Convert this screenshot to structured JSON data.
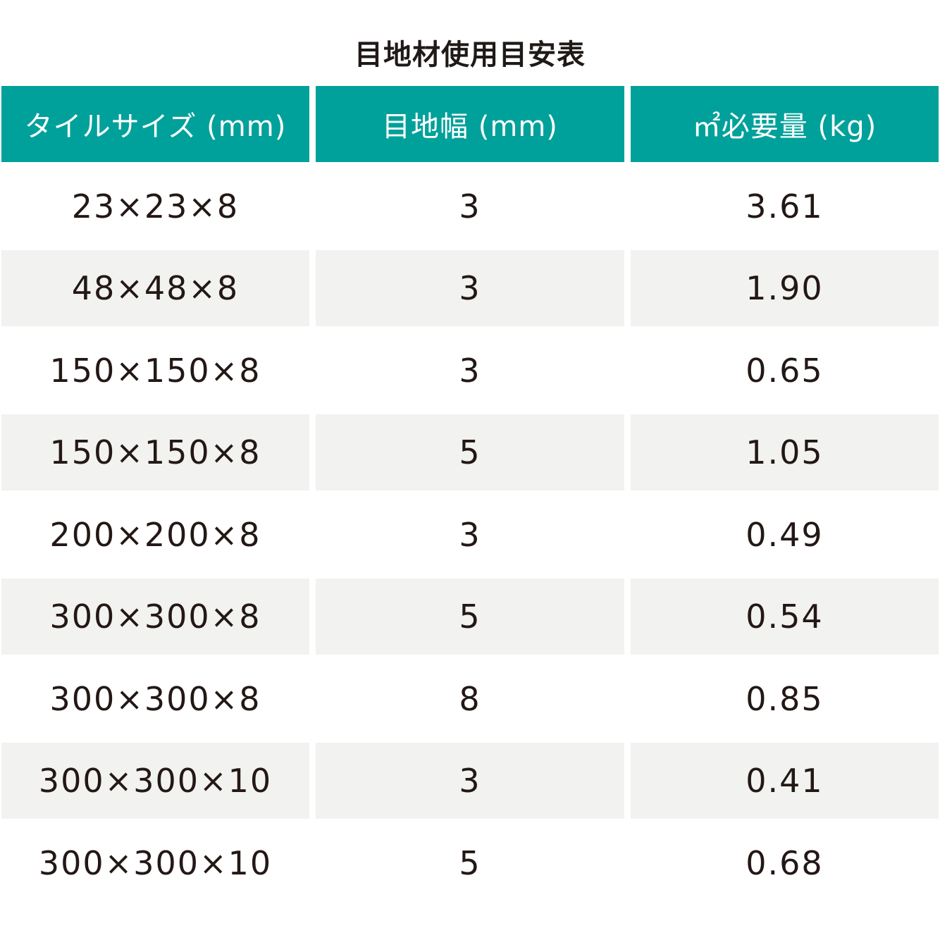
{
  "title": "目地材使用目安表",
  "colors": {
    "header_bg": "#00a19a",
    "header_text": "#ffffff",
    "stripe_bg": "#f2f2f0",
    "text": "#231815"
  },
  "columns": [
    "タイルサイズ (mm)",
    "目地幅 (mm)",
    "㎡必要量 (kg)"
  ],
  "rows": [
    {
      "tile_size": "23×23×8",
      "joint_width": "3",
      "required": "3.61"
    },
    {
      "tile_size": "48×48×8",
      "joint_width": "3",
      "required": "1.90"
    },
    {
      "tile_size": "150×150×8",
      "joint_width": "3",
      "required": "0.65"
    },
    {
      "tile_size": "150×150×8",
      "joint_width": "5",
      "required": "1.05"
    },
    {
      "tile_size": "200×200×8",
      "joint_width": "3",
      "required": "0.49"
    },
    {
      "tile_size": "300×300×8",
      "joint_width": "5",
      "required": "0.54"
    },
    {
      "tile_size": "300×300×8",
      "joint_width": "8",
      "required": "0.85"
    },
    {
      "tile_size": "300×300×10",
      "joint_width": "3",
      "required": "0.41"
    },
    {
      "tile_size": "300×300×10",
      "joint_width": "5",
      "required": "0.68"
    }
  ]
}
